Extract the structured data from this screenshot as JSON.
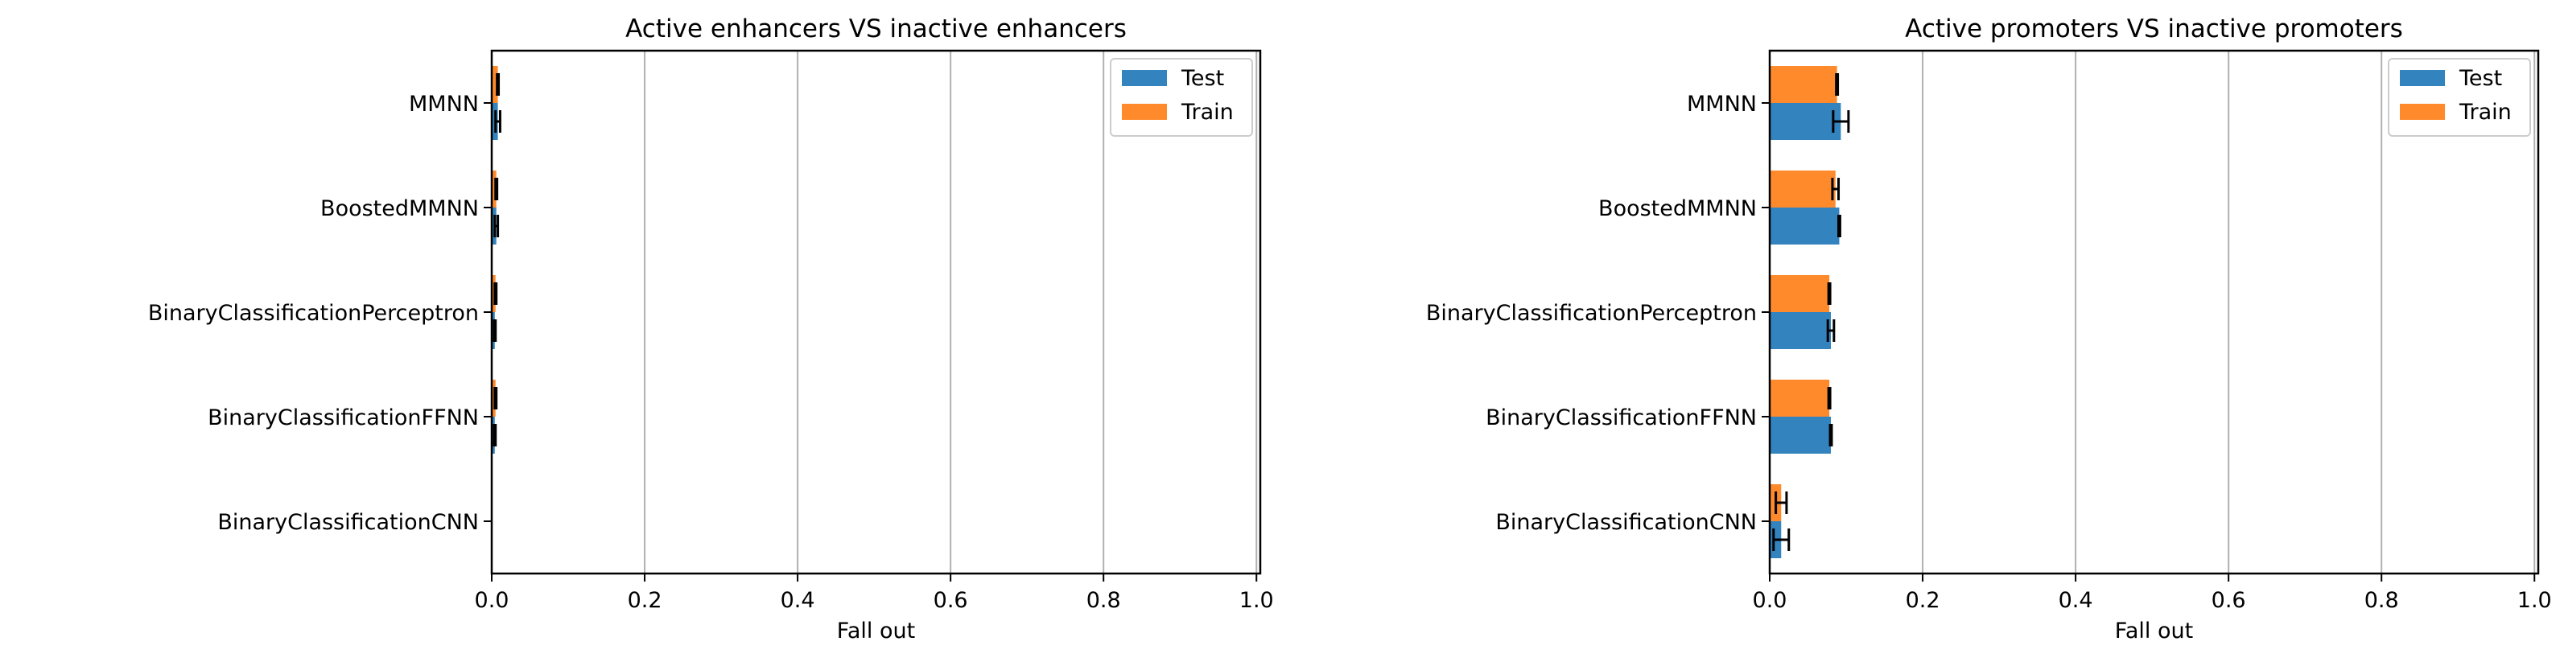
{
  "colors": {
    "test": "#3383be",
    "train": "#ff8a2c",
    "grid": "#b0b0b0",
    "error": "#000000"
  },
  "chart_data": [
    {
      "type": "bar",
      "orientation": "horizontal",
      "title": "Active enhancers VS inactive enhancers",
      "xlabel": "Fall out",
      "ylabel": "",
      "xlim": [
        0,
        1.0
      ],
      "xticks": [
        "0.0",
        "0.2",
        "0.4",
        "0.6",
        "0.8",
        "1.0"
      ],
      "grid": "vertical",
      "legend_position": "top-right",
      "categories": [
        "MMNN",
        "BoostedMMNN",
        "BinaryClassificationPerceptron",
        "BinaryClassificationFFNN",
        "BinaryClassificationCNN"
      ],
      "series": [
        {
          "name": "Test",
          "color_key": "test",
          "values": [
            0.008,
            0.006,
            0.004,
            0.004,
            0.0
          ],
          "errors": [
            0.003,
            0.002,
            0.001,
            0.001,
            0.0
          ]
        },
        {
          "name": "Train",
          "color_key": "train",
          "values": [
            0.008,
            0.006,
            0.005,
            0.005,
            0.0
          ],
          "errors": [
            0.001,
            0.001,
            0.001,
            0.001,
            0.0
          ]
        }
      ]
    },
    {
      "type": "bar",
      "orientation": "horizontal",
      "title": "Active promoters VS inactive promoters",
      "xlabel": "Fall out",
      "ylabel": "",
      "xlim": [
        0,
        1.0
      ],
      "xticks": [
        "0.0",
        "0.2",
        "0.4",
        "0.6",
        "0.8",
        "1.0"
      ],
      "grid": "vertical",
      "legend_position": "top-right",
      "categories": [
        "MMNN",
        "BoostedMMNN",
        "BinaryClassificationPerceptron",
        "BinaryClassificationFFNN",
        "BinaryClassificationCNN"
      ],
      "series": [
        {
          "name": "Test",
          "color_key": "test",
          "values": [
            0.093,
            0.091,
            0.08,
            0.08,
            0.015
          ],
          "errors": [
            0.01,
            0.001,
            0.004,
            0.001,
            0.01
          ]
        },
        {
          "name": "Train",
          "color_key": "train",
          "values": [
            0.088,
            0.086,
            0.078,
            0.078,
            0.015
          ],
          "errors": [
            0.001,
            0.004,
            0.001,
            0.001,
            0.007
          ]
        }
      ]
    }
  ]
}
